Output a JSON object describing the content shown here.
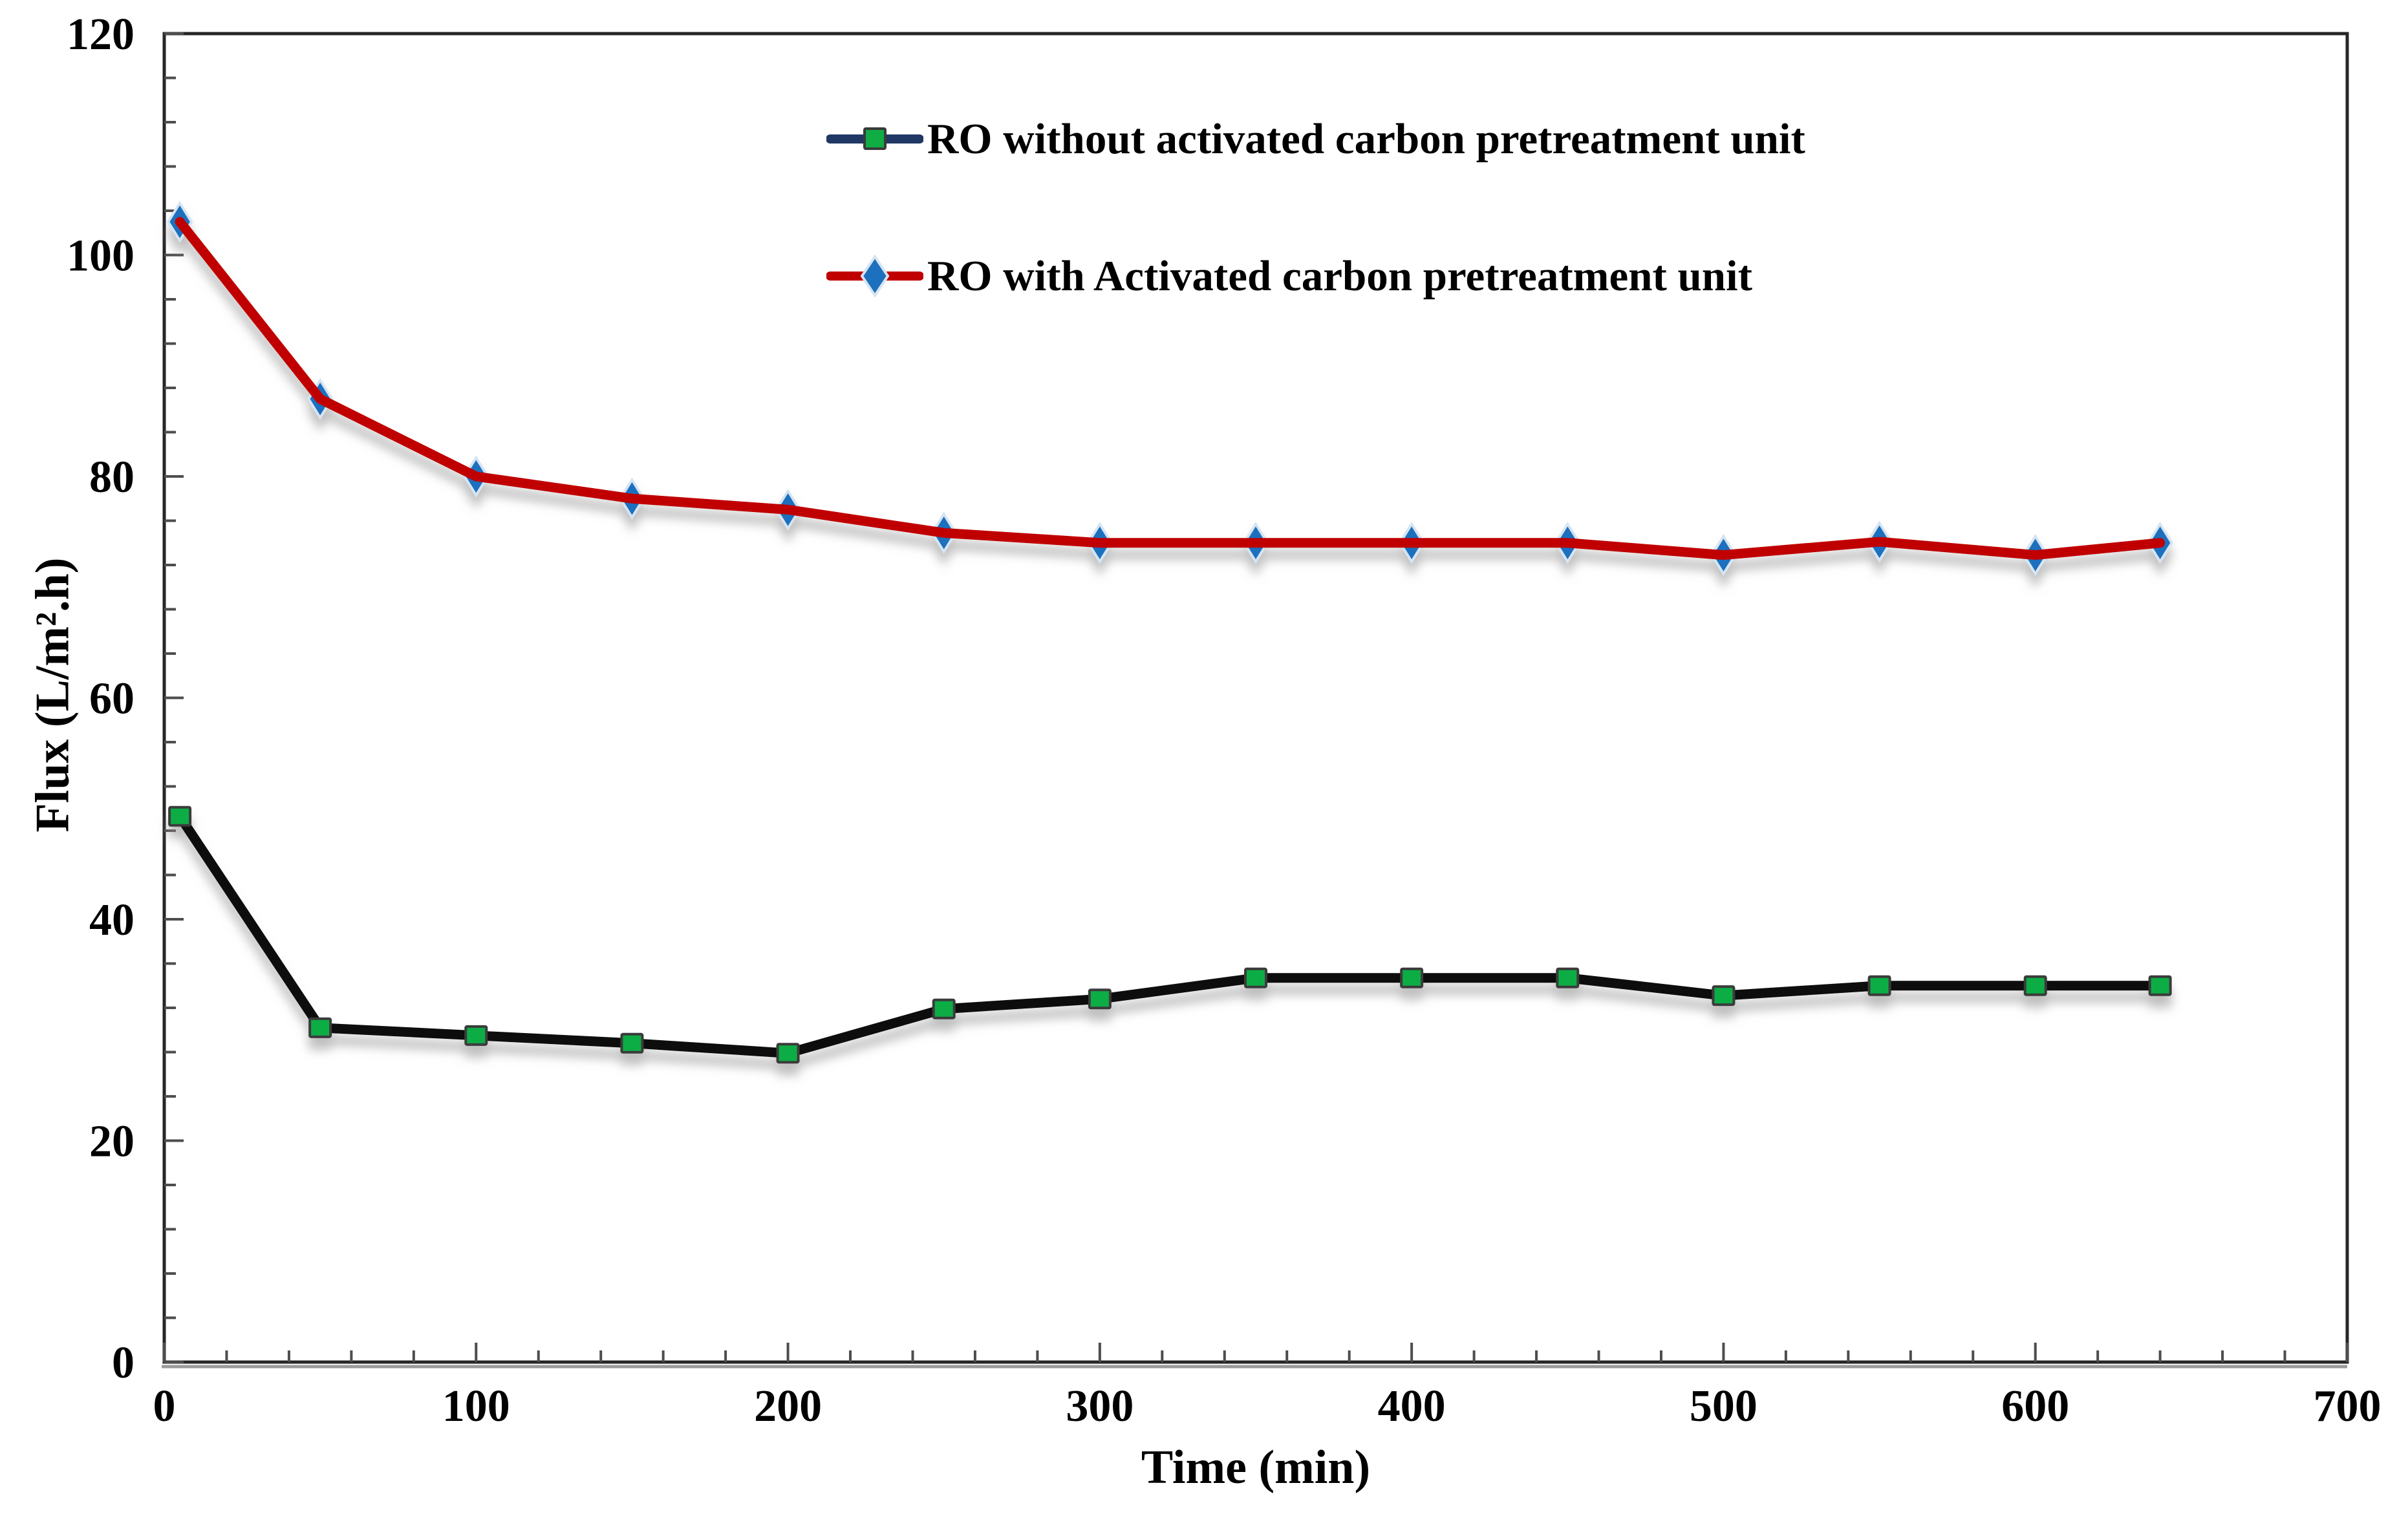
{
  "chart_data": {
    "type": "line",
    "title": "",
    "xlabel": "Time (min)",
    "ylabel": "Flux (L/m².h)",
    "xlim": [
      0,
      700
    ],
    "ylim": [
      0,
      120
    ],
    "x_major_unit": 100,
    "x_minor_unit": 20,
    "y_major_unit": 20,
    "y_minor_unit": 4,
    "x_tick_labels": [
      "0",
      "100",
      "200",
      "300",
      "400",
      "500",
      "600",
      "700"
    ],
    "y_tick_labels": [
      "0",
      "20",
      "40",
      "60",
      "80",
      "100",
      "120"
    ],
    "grid": false,
    "legend_position": "top-center-inside",
    "x": [
      5,
      50,
      100,
      150,
      200,
      250,
      300,
      350,
      400,
      450,
      500,
      550,
      600,
      640
    ],
    "series": [
      {
        "name": "RO without activated carbon pretreatment unit",
        "values": [
          49.3,
          30.2,
          29.5,
          28.8,
          27.9,
          31.9,
          32.8,
          34.7,
          34.7,
          34.7,
          33.1,
          34,
          34,
          34
        ],
        "line_color": "#0d0d0d",
        "legend_line_color": "#1F3864",
        "marker": "square",
        "marker_color": "#0FAD44",
        "marker_border": "#3a3a3a"
      },
      {
        "name": "RO with Activated carbon pretreatment unit",
        "values": [
          103,
          87,
          80,
          78,
          77,
          74.9,
          74,
          74,
          74,
          74,
          72.9,
          74.1,
          72.9,
          74
        ],
        "line_color": "#C00000",
        "legend_line_color": "#C00000",
        "marker": "diamond",
        "marker_color": "#1C70BE",
        "marker_border": "#D6E4F2"
      }
    ],
    "axis_color": "#4d4d4d",
    "border_color": "#262626",
    "text_color": "#000000"
  }
}
